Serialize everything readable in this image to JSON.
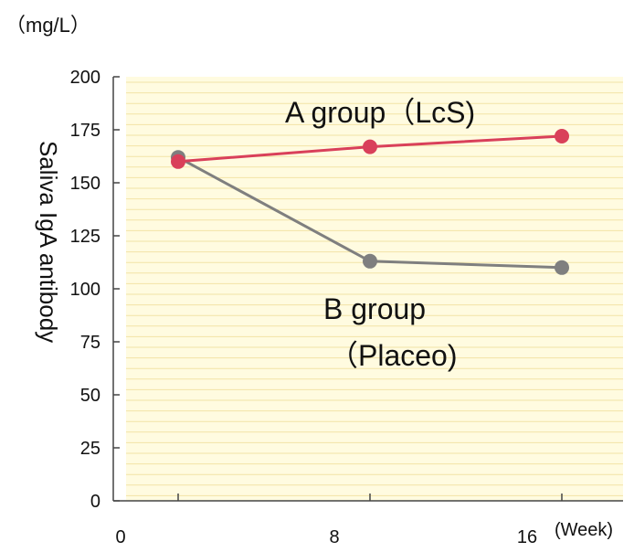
{
  "chart_data": {
    "type": "line",
    "unit_label": "（mg/L）",
    "ylabel": "Saliva IgA antibody",
    "x_unit_label": "(Week)",
    "x_tick_labels": [
      "0",
      "8",
      "16"
    ],
    "y_ticks": [
      0,
      25,
      50,
      75,
      100,
      125,
      150,
      175,
      200
    ],
    "ylim": [
      0,
      200
    ],
    "x": [
      0,
      8,
      16
    ],
    "grid": true,
    "series": [
      {
        "name": "A group（LcS)",
        "values": [
          160,
          167,
          172
        ],
        "color": "#d9405a"
      },
      {
        "name": "B group（Placeo)",
        "values": [
          162,
          113,
          110
        ],
        "color": "#7f7f7f"
      }
    ],
    "labels": {
      "a_group": "A group（LcS)",
      "b_group_line1": "B group",
      "b_group_line2": "（Placeo)"
    }
  },
  "colors": {
    "plot_background": "#fffbe0",
    "gridline": "#f2e3a6",
    "axis": "#444444"
  }
}
